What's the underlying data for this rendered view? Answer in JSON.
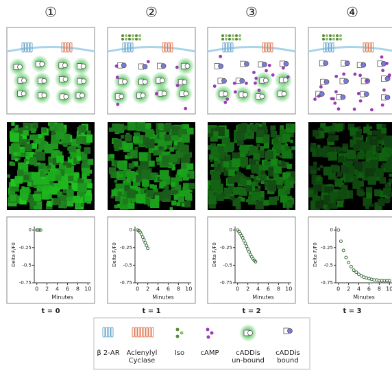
{
  "panels": [
    {
      "number": "①",
      "time": "t = 0",
      "chart": {
        "type": "scatter",
        "ylabel": "Delta F/F0",
        "xlabel": "Minutes",
        "color": "#3c6e3c",
        "x": [
          0,
          0.25,
          0.5,
          0.75
        ],
        "values": [
          0,
          0,
          0,
          0
        ],
        "xlim": [
          -0.5,
          10.5
        ],
        "ylim": [
          -0.75,
          0.05
        ],
        "xticks": [
          0,
          2,
          4,
          6,
          8,
          10
        ],
        "yticks": [
          0,
          -0.25,
          -0.5,
          -0.75
        ]
      }
    },
    {
      "number": "②",
      "time": "t = 1",
      "chart": {
        "type": "scatter",
        "ylabel": "Delta F/F0",
        "xlabel": "Minutes",
        "color": "#3c6e3c",
        "x": [
          0,
          0.25,
          0.5,
          0.75,
          1,
          1.25,
          1.5,
          1.75,
          2
        ],
        "values": [
          0,
          -0.01,
          -0.03,
          -0.06,
          -0.1,
          -0.14,
          -0.18,
          -0.22,
          -0.26
        ],
        "xlim": [
          -0.5,
          10.5
        ],
        "ylim": [
          -0.75,
          0.05
        ],
        "xticks": [
          0,
          2,
          4,
          6,
          8,
          10
        ],
        "yticks": [
          0,
          -0.25,
          -0.5,
          -0.75
        ]
      }
    },
    {
      "number": "③",
      "time": "t = 2",
      "chart": {
        "type": "scatter",
        "ylabel": "Delta F/F0",
        "xlabel": "Minutes",
        "color": "#3c6e3c",
        "x": [
          0,
          0.25,
          0.5,
          0.75,
          1,
          1.25,
          1.5,
          1.75,
          2,
          2.25,
          2.5,
          2.75,
          3,
          3.25,
          3.5
        ],
        "values": [
          0,
          -0.02,
          -0.05,
          -0.08,
          -0.11,
          -0.15,
          -0.19,
          -0.23,
          -0.27,
          -0.31,
          -0.35,
          -0.38,
          -0.41,
          -0.43,
          -0.45
        ],
        "xlim": [
          -0.5,
          10.5
        ],
        "ylim": [
          -0.75,
          0.05
        ],
        "xticks": [
          0,
          2,
          4,
          6,
          8,
          10
        ],
        "yticks": [
          0,
          -0.25,
          -0.5,
          -0.75
        ]
      }
    },
    {
      "number": "④",
      "time": "t = 3",
      "chart": {
        "type": "scatter",
        "ylabel": "Delta F/F0",
        "xlabel": "Minutes",
        "color": "#3c6e3c",
        "x": [
          0,
          0.5,
          1,
          1.5,
          2,
          2.5,
          3,
          3.5,
          4,
          4.5,
          5,
          5.5,
          6,
          6.5,
          7,
          7.5,
          8,
          8.5,
          9,
          9.5,
          10
        ],
        "values": [
          0,
          -0.16,
          -0.29,
          -0.39,
          -0.46,
          -0.52,
          -0.57,
          -0.6,
          -0.63,
          -0.65,
          -0.67,
          -0.68,
          -0.69,
          -0.7,
          -0.71,
          -0.71,
          -0.72,
          -0.72,
          -0.72,
          -0.72,
          -0.72
        ],
        "xlim": [
          -0.5,
          10.5
        ],
        "ylim": [
          -0.75,
          0.05
        ],
        "xticks": [
          0,
          2,
          4,
          6,
          8,
          10
        ],
        "yticks": [
          0,
          -0.25,
          -0.5,
          -0.75
        ]
      }
    }
  ],
  "legend": [
    {
      "lines": [
        "β 2-AR"
      ]
    },
    {
      "lines": [
        "Aclenylyl",
        "Cyclase"
      ]
    },
    {
      "lines": [
        "Iso"
      ]
    },
    {
      "lines": [
        "cAMP"
      ]
    },
    {
      "lines": [
        "cADDis",
        "un-bound"
      ]
    },
    {
      "lines": [
        "cADDis",
        "bound"
      ]
    }
  ]
}
